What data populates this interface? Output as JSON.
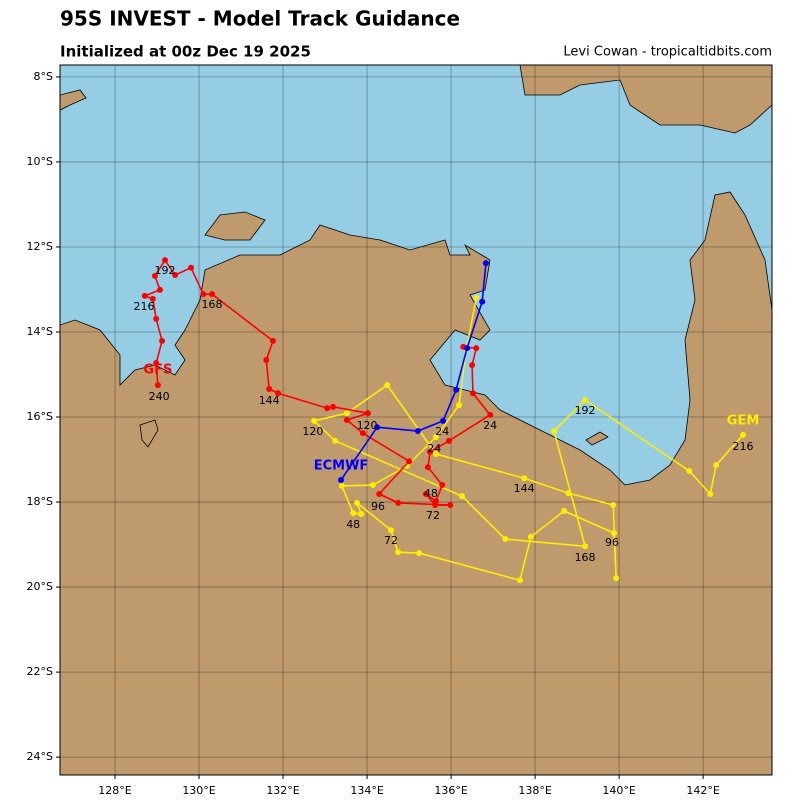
{
  "chart_data": {
    "type": "map",
    "title": "95S INVEST - Model Track Guidance",
    "subtitle": "Initialized at 00z Dec 19 2025",
    "credit": "Levi Cowan - tropicaltidbits.com",
    "xlim": [
      126.69,
      143.64
    ],
    "ylim": [
      -24.42,
      -7.72
    ],
    "xticks": [
      {
        "value": 128,
        "label": "128°E"
      },
      {
        "value": 130,
        "label": "130°E"
      },
      {
        "value": 132,
        "label": "132°E"
      },
      {
        "value": 134,
        "label": "134°E"
      },
      {
        "value": 136,
        "label": "136°E"
      },
      {
        "value": 138,
        "label": "138°E"
      },
      {
        "value": 140,
        "label": "140°E"
      },
      {
        "value": 142,
        "label": "142°E"
      }
    ],
    "yticks": [
      {
        "value": -8,
        "label": "8°S"
      },
      {
        "value": -10,
        "label": "10°S"
      },
      {
        "value": -12,
        "label": "12°S"
      },
      {
        "value": -14,
        "label": "14°S"
      },
      {
        "value": -16,
        "label": "16°S"
      },
      {
        "value": -18,
        "label": "18°S"
      },
      {
        "value": -20,
        "label": "20°S"
      },
      {
        "value": -22,
        "label": "22°S"
      },
      {
        "value": -24,
        "label": "24°S"
      }
    ],
    "grid": true,
    "series": [
      {
        "name": "GEM",
        "color": "#ffee00",
        "label_lon": 142.95,
        "label_lat": -16.09,
        "lon": [
          136.6,
          136.36,
          136.19,
          135.64,
          134.95,
          134.14,
          133.4,
          133.67,
          133.86,
          133.76,
          134.57,
          134.74,
          135.24,
          137.64,
          137.9,
          138.69,
          139.88,
          139.93,
          139.86,
          138.79,
          137.74,
          135.64,
          134.48,
          133.52,
          132.74,
          133.24,
          136.26,
          137.29,
          139.19,
          138.45,
          139.19,
          141.67,
          142.17,
          142.31,
          142.95
        ],
        "lat": [
          -13.2,
          -14.42,
          -15.72,
          -16.47,
          -17.15,
          -17.6,
          -17.62,
          -18.26,
          -18.28,
          -18.02,
          -18.66,
          -19.18,
          -19.2,
          -19.84,
          -18.82,
          -18.21,
          -18.73,
          -19.79,
          -18.07,
          -17.79,
          -17.44,
          -16.87,
          -15.25,
          -15.91,
          -16.09,
          -16.56,
          -17.86,
          -18.87,
          -19.04,
          -16.33,
          -15.6,
          -17.27,
          -17.81,
          -17.13,
          -16.42
        ],
        "hour_labels": [
          {
            "hour": 24,
            "lon": 135.6,
            "lat": -16.75
          },
          {
            "hour": 48,
            "lon": 133.67,
            "lat": -18.54
          },
          {
            "hour": 72,
            "lon": 134.57,
            "lat": -18.92
          },
          {
            "hour": 96,
            "lon": 139.83,
            "lat": -18.96
          },
          {
            "hour": 120,
            "lon": 132.71,
            "lat": -16.35
          },
          {
            "hour": 144,
            "lon": 137.74,
            "lat": -17.69
          },
          {
            "hour": 168,
            "lon": 139.19,
            "lat": -19.32
          },
          {
            "hour": 192,
            "lon": 139.19,
            "lat": -15.86
          },
          {
            "hour": 216,
            "lon": 142.95,
            "lat": -16.71
          }
        ]
      },
      {
        "name": "GFS",
        "color": "#ff0000",
        "label_lon": 129.02,
        "label_lat": -14.89,
        "lon": [
          136.29,
          136.6,
          136.5,
          136.52,
          136.93,
          135.95,
          135.5,
          135.45,
          135.79,
          135.64,
          135.4,
          135.62,
          135.98,
          134.74,
          134.29,
          135.0,
          133.9,
          133.52,
          134.02,
          133.19,
          133.05,
          131.88,
          131.67,
          131.6,
          131.76,
          130.31,
          130.1,
          129.81,
          129.43,
          129.19,
          128.95,
          129.07,
          128.71,
          128.9,
          128.98,
          129.12,
          128.98,
          129.02
        ],
        "lat": [
          -14.35,
          -14.38,
          -14.78,
          -15.44,
          -15.95,
          -16.56,
          -16.82,
          -17.18,
          -17.6,
          -17.98,
          -17.81,
          -18.07,
          -18.07,
          -18.02,
          -17.81,
          -17.04,
          -16.38,
          -16.07,
          -15.91,
          -15.76,
          -15.79,
          -15.44,
          -15.34,
          -14.66,
          -14.21,
          -13.11,
          -13.11,
          -12.49,
          -12.66,
          -12.31,
          -12.68,
          -13.01,
          -13.15,
          -13.22,
          -13.69,
          -14.21,
          -14.73,
          -15.25
        ],
        "hour_labels": [
          {
            "hour": 24,
            "lon": 136.93,
            "lat": -16.21
          },
          {
            "hour": 48,
            "lon": 135.52,
            "lat": -17.81
          },
          {
            "hour": 72,
            "lon": 135.57,
            "lat": -18.33
          },
          {
            "hour": 96,
            "lon": 134.26,
            "lat": -18.12
          },
          {
            "hour": 120,
            "lon": 134.0,
            "lat": -16.21
          },
          {
            "hour": 144,
            "lon": 131.67,
            "lat": -15.62
          },
          {
            "hour": 168,
            "lon": 130.31,
            "lat": -13.36
          },
          {
            "hour": 192,
            "lon": 129.19,
            "lat": -12.56
          },
          {
            "hour": 216,
            "lon": 128.69,
            "lat": -13.41
          },
          {
            "hour": 240,
            "lon": 129.05,
            "lat": -15.53
          }
        ]
      },
      {
        "name": "ECMWF",
        "color": "#0000ff",
        "label_lon": 133.38,
        "label_lat": -17.15,
        "lon": [
          136.83,
          136.74,
          136.38,
          136.12,
          135.81,
          135.21,
          134.24,
          133.38
        ],
        "lat": [
          -12.38,
          -13.29,
          -14.38,
          -15.36,
          -16.09,
          -16.33,
          -16.24,
          -17.48
        ],
        "hour_labels": [
          {
            "hour": 24,
            "lon": 135.79,
            "lat": -16.35
          }
        ]
      }
    ]
  }
}
